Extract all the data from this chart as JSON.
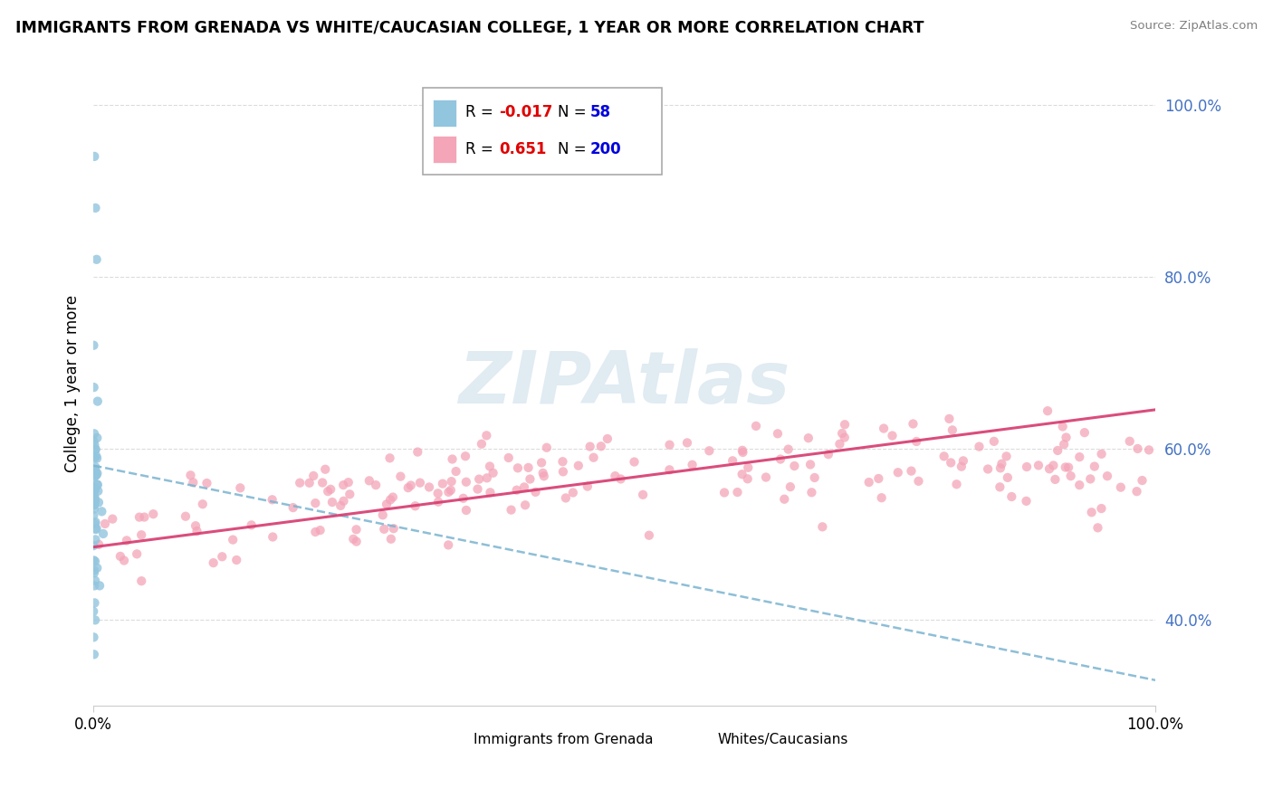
{
  "title": "IMMIGRANTS FROM GRENADA VS WHITE/CAUCASIAN COLLEGE, 1 YEAR OR MORE CORRELATION CHART",
  "source": "Source: ZipAtlas.com",
  "ylabel": "College, 1 year or more",
  "color_grenada": "#92c5de",
  "color_white": "#f4a5b8",
  "color_trend_grenada": "#7ab3d0",
  "color_trend_white": "#d63a6e",
  "background_color": "#ffffff",
  "watermark": "ZIPAtlas",
  "R_grenada": -0.017,
  "N_grenada": 58,
  "R_white": 0.651,
  "N_white": 200,
  "ytick_positions": [
    0.4,
    0.6,
    0.8,
    1.0
  ],
  "ytick_labels": [
    "40.0%",
    "60.0%",
    "80.0%",
    "100.0%"
  ],
  "ylim": [
    0.3,
    1.05
  ],
  "xlim": [
    0.0,
    1.0
  ],
  "legend_R1_color": "#ff0000",
  "legend_R2_color": "#ff1493",
  "legend_N1_color": "#0000ff",
  "legend_N2_color": "#0000ff"
}
